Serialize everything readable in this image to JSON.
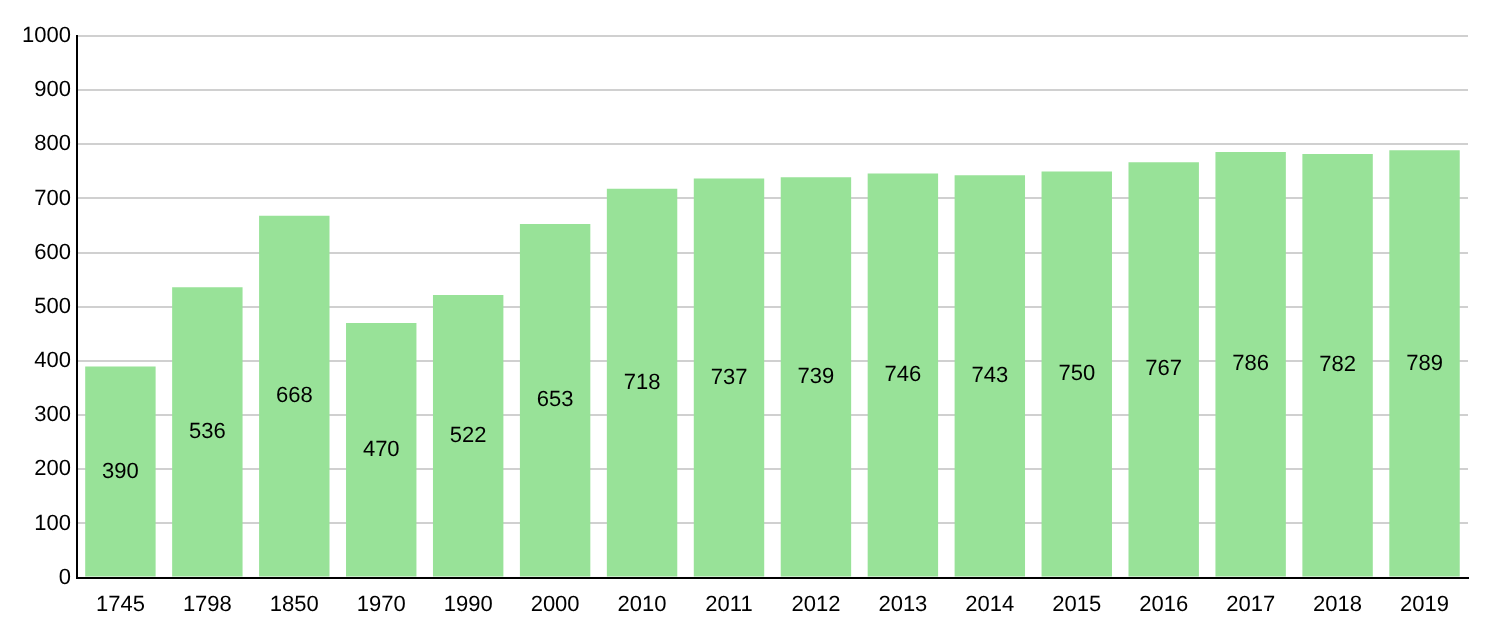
{
  "chart_data": {
    "type": "bar",
    "categories": [
      "1745",
      "1798",
      "1850",
      "1970",
      "1990",
      "2000",
      "2010",
      "2011",
      "2012",
      "2013",
      "2014",
      "2015",
      "2016",
      "2017",
      "2018",
      "2019"
    ],
    "values": [
      390,
      536,
      668,
      470,
      522,
      653,
      718,
      737,
      739,
      746,
      743,
      750,
      767,
      786,
      782,
      789
    ],
    "color": "#98e298",
    "ylim": [
      0,
      1000
    ],
    "yticks": [
      0,
      100,
      200,
      300,
      400,
      500,
      600,
      700,
      800,
      900,
      1000
    ],
    "grid": "y",
    "data_labels": true,
    "legend": false
  }
}
